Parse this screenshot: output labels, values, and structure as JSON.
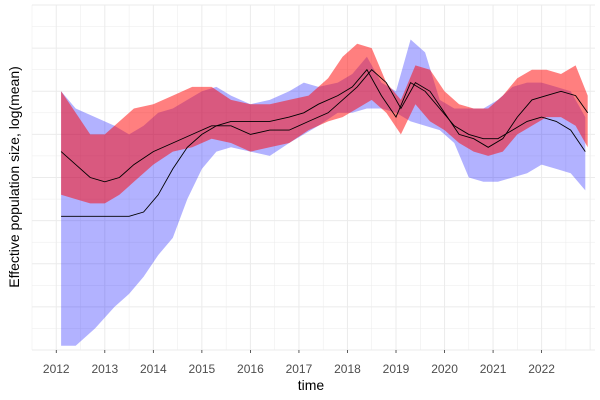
{
  "chart_data": {
    "type": "area",
    "title": "",
    "xlabel": "time",
    "ylabel": "Effective population size, log(mean)",
    "xlim": [
      2011.5,
      2023.1
    ],
    "ylim": [
      0,
      8
    ],
    "grid": true,
    "y_tick_labels_shown": false,
    "x_ticks": [
      2012,
      2013,
      2014,
      2015,
      2016,
      2017,
      2018,
      2019,
      2020,
      2021,
      2022
    ],
    "x_tick_labels": [
      "2012",
      "2013",
      "2014",
      "2015",
      "2016",
      "2017",
      "2018",
      "2019",
      "2020",
      "2021",
      "2022"
    ],
    "series": [
      {
        "color": "#0000ff",
        "band_opacity": 0.3,
        "x": [
          2012.1,
          2012.4,
          2012.8,
          2013.2,
          2013.5,
          2013.8,
          2014.1,
          2014.4,
          2014.7,
          2015.0,
          2015.3,
          2015.6,
          2016.0,
          2016.4,
          2016.8,
          2017.1,
          2017.4,
          2017.8,
          2018.1,
          2018.4,
          2018.7,
          2019.0,
          2019.3,
          2019.6,
          2019.9,
          2020.2,
          2020.5,
          2020.8,
          2021.1,
          2021.4,
          2021.7,
          2022.0,
          2022.3,
          2022.6,
          2022.9
        ],
        "mean": [
          3.1,
          3.1,
          3.1,
          3.1,
          3.1,
          3.2,
          3.6,
          4.2,
          4.7,
          5.0,
          5.2,
          5.3,
          5.3,
          5.3,
          5.4,
          5.5,
          5.7,
          5.9,
          6.1,
          6.5,
          5.9,
          5.4,
          6.2,
          6.0,
          5.6,
          5.2,
          5.0,
          4.9,
          4.9,
          5.1,
          5.3,
          5.4,
          5.3,
          5.1,
          4.6
        ],
        "lower": [
          0.1,
          0.1,
          0.5,
          1.0,
          1.3,
          1.7,
          2.2,
          2.6,
          3.5,
          4.2,
          4.6,
          4.7,
          4.6,
          4.5,
          4.8,
          5.0,
          5.2,
          5.5,
          5.5,
          5.6,
          5.6,
          5.5,
          5.3,
          5.2,
          5.1,
          4.8,
          4.0,
          3.9,
          3.9,
          4.0,
          4.1,
          4.3,
          4.2,
          4.1,
          3.7
        ],
        "upper": [
          6.0,
          5.6,
          5.4,
          5.2,
          5.0,
          5.2,
          5.5,
          5.6,
          5.8,
          6.0,
          6.1,
          5.9,
          5.7,
          5.8,
          6.0,
          6.2,
          6.1,
          6.2,
          6.4,
          6.8,
          6.2,
          6.0,
          7.2,
          6.9,
          5.8,
          5.6,
          5.6,
          5.6,
          5.8,
          6.1,
          6.2,
          6.2,
          6.1,
          6.0,
          5.4
        ]
      },
      {
        "color": "#ff0000",
        "band_opacity": 0.5,
        "x": [
          2012.1,
          2012.4,
          2012.7,
          2013.0,
          2013.3,
          2013.6,
          2014.0,
          2014.4,
          2014.8,
          2015.2,
          2015.6,
          2016.0,
          2016.4,
          2016.8,
          2017.2,
          2017.6,
          2017.9,
          2018.2,
          2018.5,
          2018.8,
          2019.1,
          2019.4,
          2019.7,
          2020.0,
          2020.3,
          2020.6,
          2020.9,
          2021.2,
          2021.5,
          2021.8,
          2022.1,
          2022.4,
          2022.7,
          2022.95
        ],
        "mean": [
          4.6,
          4.3,
          4.0,
          3.9,
          4.0,
          4.3,
          4.6,
          4.8,
          5.0,
          5.2,
          5.2,
          5.0,
          5.1,
          5.1,
          5.3,
          5.5,
          5.8,
          6.1,
          6.5,
          6.2,
          5.6,
          6.2,
          6.0,
          5.5,
          5.0,
          4.9,
          4.7,
          4.9,
          5.4,
          5.8,
          5.9,
          6.0,
          5.9,
          5.5
        ],
        "lower": [
          3.6,
          3.5,
          3.4,
          3.4,
          3.6,
          3.9,
          4.3,
          4.6,
          4.7,
          4.9,
          4.8,
          4.6,
          4.7,
          4.8,
          5.1,
          5.3,
          5.4,
          5.6,
          5.8,
          5.5,
          5.0,
          5.7,
          5.3,
          5.1,
          4.8,
          4.6,
          4.5,
          4.6,
          5.0,
          5.2,
          5.4,
          5.4,
          5.2,
          4.7
        ],
        "upper": [
          6.0,
          5.5,
          5.0,
          5.0,
          5.3,
          5.6,
          5.7,
          5.9,
          6.1,
          6.1,
          5.8,
          5.7,
          5.7,
          5.8,
          5.9,
          6.3,
          6.8,
          7.1,
          7.0,
          6.2,
          5.8,
          6.6,
          6.5,
          6.0,
          5.7,
          5.6,
          5.6,
          5.9,
          6.3,
          6.5,
          6.5,
          6.4,
          6.6,
          5.9
        ]
      }
    ]
  }
}
